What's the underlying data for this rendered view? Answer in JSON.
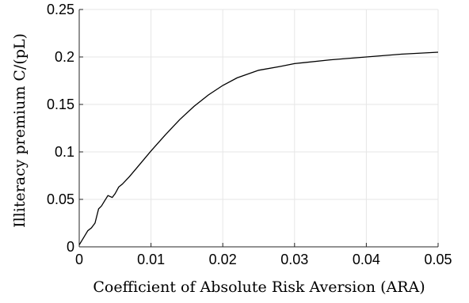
{
  "chart_data": {
    "type": "line",
    "title": "",
    "xlabel": "Coefficient of Absolute Risk Aversion (ARA)",
    "ylabel": "Illiteracy premium C/(pL)",
    "xlim": [
      0,
      0.05
    ],
    "ylim": [
      0,
      0.25
    ],
    "xticks": [
      0,
      0.01,
      0.02,
      0.03,
      0.04,
      0.05
    ],
    "xtick_labels": [
      "0",
      "0.01",
      "0.02",
      "0.03",
      "0.04",
      "0.05"
    ],
    "yticks": [
      0,
      0.05,
      0.1,
      0.15,
      0.2,
      0.25
    ],
    "ytick_labels": [
      "0",
      "0.05",
      "0.1",
      "0.15",
      "0.2",
      "0.25"
    ],
    "grid": true,
    "series": [
      {
        "x": [
          0,
          0.0008,
          0.0012,
          0.0017,
          0.0022,
          0.0027,
          0.0031,
          0.0035,
          0.004,
          0.0046,
          0.005,
          0.0055,
          0.006,
          0.007,
          0.008,
          0.01,
          0.012,
          0.014,
          0.016,
          0.018,
          0.02,
          0.022,
          0.025,
          0.028,
          0.03,
          0.035,
          0.04,
          0.045,
          0.05
        ],
        "y": [
          0.002,
          0.012,
          0.017,
          0.02,
          0.025,
          0.04,
          0.043,
          0.048,
          0.054,
          0.052,
          0.056,
          0.063,
          0.066,
          0.074,
          0.083,
          0.101,
          0.118,
          0.134,
          0.148,
          0.16,
          0.17,
          0.178,
          0.186,
          0.19,
          0.193,
          0.197,
          0.2,
          0.203,
          0.205
        ]
      }
    ]
  }
}
